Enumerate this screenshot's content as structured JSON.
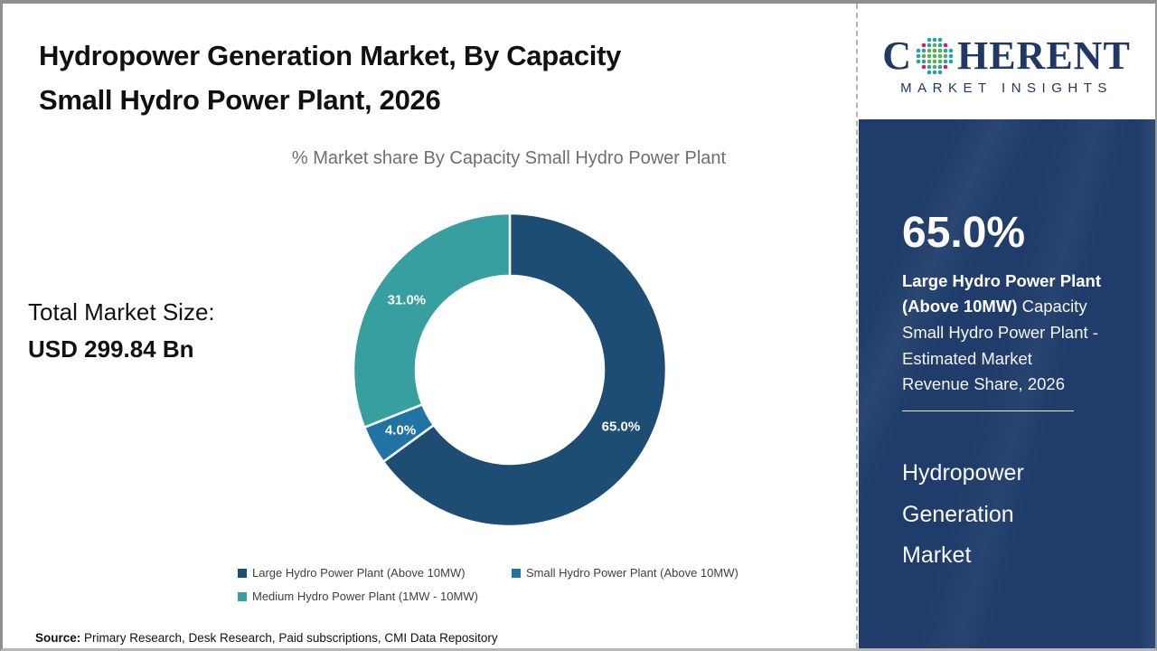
{
  "header": {
    "title_line1": "Hydropower Generation Market, By Capacity",
    "title_line2": "Small Hydro Power Plant, 2026"
  },
  "chart": {
    "subtitle": "% Market share By Capacity Small Hydro Power Plant",
    "total_label": "Total Market Size:",
    "total_value": "USD 299.84 Bn"
  },
  "chart_data": {
    "type": "pie",
    "donut": true,
    "title": "% Market share By Capacity Small Hydro Power Plant",
    "categories": [
      "Large Hydro Power Plant (Above 10MW)",
      "Small Hydro Power Plant (Above 10MW)",
      "Medium Hydro Power Plant (1MW - 10MW)"
    ],
    "values": [
      65.0,
      4.0,
      31.0
    ],
    "labels": [
      "65.0%",
      "4.0%",
      "31.0%"
    ],
    "colors": [
      "#1e4d74",
      "#2173a3",
      "#379fa0"
    ],
    "start_angle_deg": 0,
    "direction": "clockwise",
    "outer_radius": 173,
    "inner_radius": 104,
    "label_radius": 138,
    "legend_position": "bottom",
    "legend_rows": [
      [
        0,
        1
      ],
      [
        2
      ]
    ],
    "total_market_size": "USD 299.84 Bn"
  },
  "source": {
    "label": "Source:",
    "text": " Primary Research, Desk Research, Paid subscriptions, CMI Data Repository"
  },
  "sidebar": {
    "logo": {
      "word_c": "C",
      "word_rest": "HERENT",
      "subtitle": "MARKET INSIGHTS"
    },
    "stat_value": "65.0%",
    "stat_bold": "Large Hydro Power Plant (Above 10MW)",
    "stat_rest": " Capacity Small Hydro Power Plant - Estimated Market Revenue Share, 2026",
    "market_name": "Hydropower Generation Market"
  },
  "colors": {
    "navy_panel": "#1f3c6a",
    "logo_navy": "#1f3864",
    "logo_teal": "#2ba0a6",
    "logo_green": "#52b153",
    "logo_magenta": "#cb1d74",
    "title_text": "#111111",
    "subtitle_text": "#6e6e6e",
    "legend_text": "#404040"
  }
}
